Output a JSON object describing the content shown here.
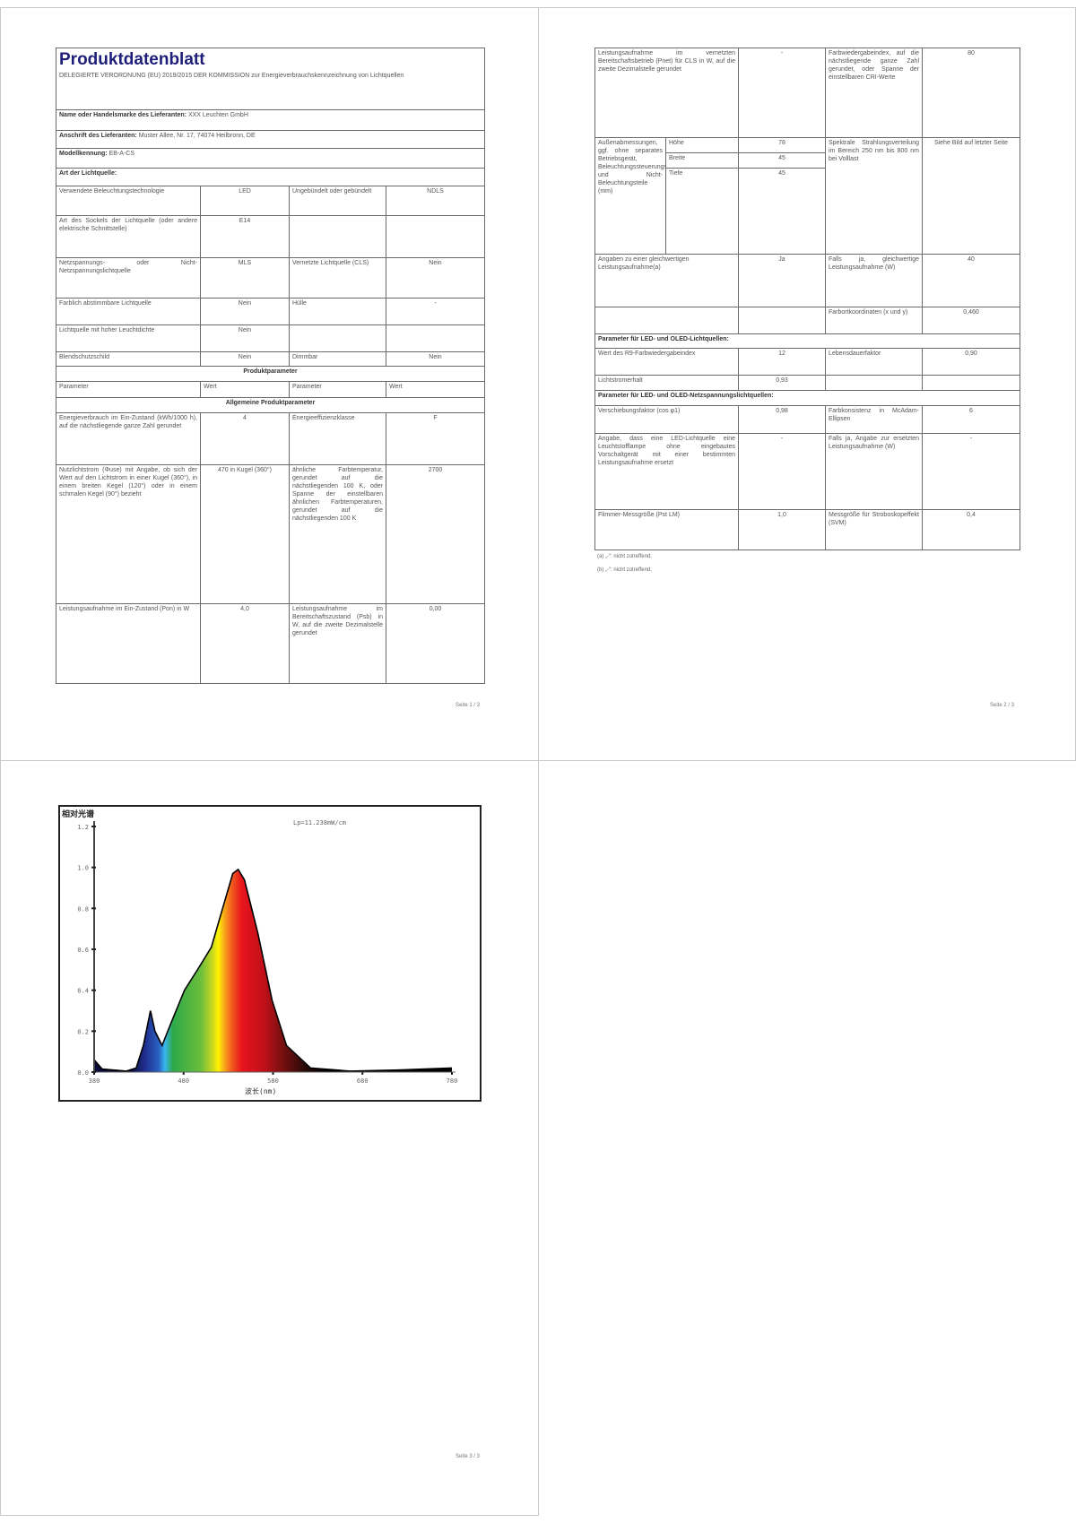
{
  "page1": {
    "title": "Produktdatenblatt",
    "subtitle": "DELEGIERTE VERORDNUNG (EU) 2019/2015 DER KOMMISSION zur Energieverbrauchskennzeichnung von Lichtquellen",
    "supplier_label": "Name oder Handelsmarke des Lieferanten:",
    "supplier_value": "XXX Leuchten GmbH",
    "address_label": "Anschrift des Lieferanten:",
    "address_value": "Muster Allee, Nr. 17, 74074 Heilbronn, DE",
    "model_label": "Modellkennung:",
    "model_value": "EB-A-CS",
    "type_heading": "Art der Lichtquelle:",
    "type_rows": [
      [
        "Verwendete Beleuchtungstechnologie",
        "LED",
        "Ungebündelt oder gebündelt",
        "NDLS"
      ],
      [
        "Art des Sockels der Lichtquelle (oder andere elektrische Schnittstelle)",
        "E14",
        "",
        ""
      ],
      [
        "Netzspannungs- oder Nicht-Netzspannungslichtquelle",
        "MLS",
        "Vernetzte Lichtquelle (CLS)",
        "Nein"
      ],
      [
        "Farblich abstimmbare Lichtquelle",
        "Nein",
        "Hülle",
        "-"
      ],
      [
        "Lichtquelle mit hoher Leuchtdichte",
        "Nein",
        "",
        ""
      ],
      [
        "Blendschutzschild",
        "Nein",
        "Dimmbar",
        "Nein"
      ]
    ],
    "product_params_heading": "Produktparameter",
    "col_headers": [
      "Parameter",
      "Wert",
      "Parameter",
      "Wert"
    ],
    "general_heading": "Allgemeine Produktparameter",
    "param_rows": [
      [
        "Energieverbrauch im Ein-Zustand (kWh/1000 h), auf die nächstliegende ganze Zahl gerundet",
        "4",
        "Energieeffizienzklasse",
        "F"
      ],
      [
        "Nutzlichtstrom (Φuse) mit Angabe, ob sich der Wert auf den Lichtstrom in einer Kugel (360°), in einem breiten Kegel (120°) oder in einem schmalen Kegel (90°) bezieht",
        "470 in Kugel (360°)",
        "ähnliche Farbtemperatur, gerundet auf die nächstliegenden 100 K, oder Spanne der einstellbaren ähnlichen Farbtemperaturen, gerundet auf die nächstliegenden 100 K",
        "2700"
      ],
      [
        "Leistungsaufnahme im Ein-Zustand (Pon) in W",
        "4,0",
        "Leistungsaufnahme im Bereitschaftszustand (Psb) in W, auf die zweite Dezimalstelle gerundet",
        "0,00"
      ]
    ],
    "page_number": "Seite 1 / 3"
  },
  "page2": {
    "row1": [
      "Leistungsaufnahme im vernetzten Bereitschaftsbetrieb (Pnet) für CLS in W, auf die zweite Dezimalstelle gerundet",
      "-",
      "Farbwiedergabeindex, auf die nächstliegende ganze Zahl gerundet, oder Spanne der einstellbaren CRI-Werte",
      "80"
    ],
    "dims_label": "Außenabmessungen, ggf. ohne separates Betriebsgerät, Beleuchtungssteuerungsteile und Nicht-Beleuchtungsteile (mm)",
    "dims": [
      {
        "label": "Höhe",
        "value": "78"
      },
      {
        "label": "Breite",
        "value": "45"
      },
      {
        "label": "Tiefe",
        "value": "45"
      }
    ],
    "spectrum_label": "Spektrale Strahlungsverteilung im Bereich 250 nm bis 800 nm bei Volllast",
    "spectrum_value": "Siehe Bild auf letzter Seite",
    "row3": [
      "Angaben zu einer gleichwertigen Leistungsaufnahme(a)",
      "Ja",
      "Falls ja, gleichwertige Leistungsaufnahme (W)",
      "40"
    ],
    "row4": [
      "",
      "",
      "Farbortkoordinaten (x und y)",
      "0,460"
    ],
    "led_heading": "Parameter für LED- und OLED-Lichtquellen:",
    "led_rows": [
      [
        "Wert des R9-Farbwiedergabeindex",
        "12",
        "Lebensdauerfaktor",
        "0,90"
      ],
      [
        "Lichtstromerhalt",
        "0,93",
        "",
        ""
      ]
    ],
    "mains_heading": "Parameter für LED- und OLED-Netzspannungslichtquellen:",
    "mains_rows": [
      [
        "Verschiebungsfaktor (cos φ1)",
        "0,98",
        "Farbkonsistenz in McAdam-Ellipsen",
        "6"
      ],
      [
        "Angabe, dass eine LED-Lichtquelle eine Leuchtstofflampe ohne eingebautes Vorschaltgerät mit einer bestimmten Leistungsaufnahme ersetzt",
        "-",
        "Falls ja, Angabe zur ersetzten Leistungsaufnahme (W)",
        "-"
      ],
      [
        "Flimmer-Messgröße (Pst LM)",
        "1,0",
        "Messgröße für Stroboskopeffekt (SVM)",
        "0,4"
      ]
    ],
    "footnotes": [
      "(a) „-“: nicht zutreffend;",
      "(b) „-“: nicht zutreffend;"
    ],
    "page_number": "Seite 2 / 3"
  },
  "page3": {
    "page_number": "Seite 3 / 3"
  },
  "chart_data": {
    "type": "area",
    "title": "",
    "ylabel": "相对光谱",
    "xlabel": "波长(nm)",
    "annotation": "Lp=11.238mW/cm",
    "xlim": [
      380,
      780
    ],
    "ylim": [
      0,
      1.2
    ],
    "xticks": [
      "380",
      "480",
      "580",
      "680",
      "780"
    ],
    "yticks": [
      "0.0",
      "0.2",
      "0.4",
      "0.6",
      "0.8",
      "1.0",
      "1.2"
    ],
    "grid": false,
    "fill": "spectral color gradient",
    "x": [
      380,
      389,
      416,
      427,
      435,
      443,
      448,
      456,
      465,
      481,
      497,
      511,
      525,
      535,
      541,
      548,
      563,
      579,
      595,
      622,
      666,
      720,
      780
    ],
    "y": [
      0.06,
      0.015,
      0.005,
      0.02,
      0.13,
      0.3,
      0.2,
      0.13,
      0.23,
      0.4,
      0.51,
      0.61,
      0.82,
      0.97,
      0.99,
      0.94,
      0.68,
      0.35,
      0.13,
      0.02,
      0.005,
      0.01,
      0.02
    ]
  }
}
